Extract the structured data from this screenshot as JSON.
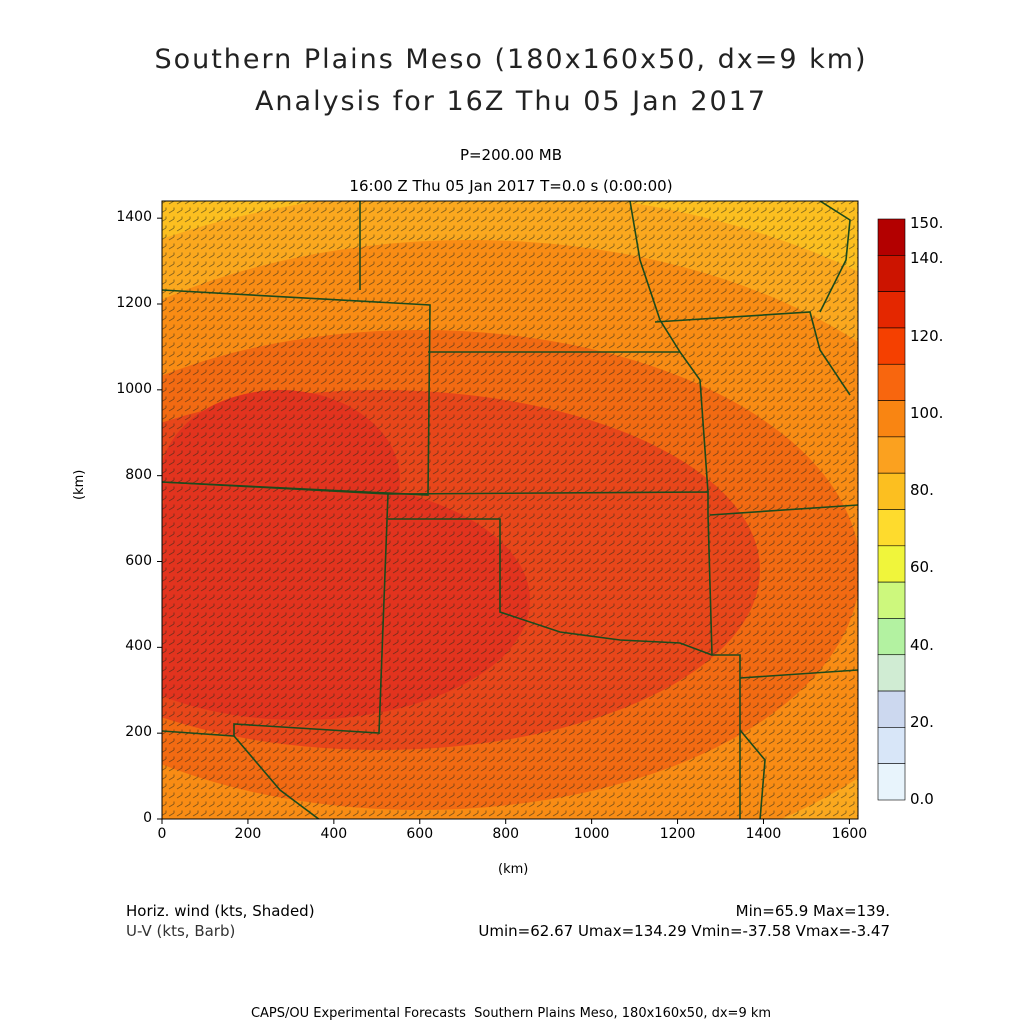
{
  "title": {
    "line1": "Southern Plains Meso (180x160x50, dx=9 km)",
    "line2": "Analysis for 16Z Thu 05 Jan 2017"
  },
  "subtitle": {
    "level": "P=200.00 MB",
    "time": "16:00 Z Thu 05 Jan 2017    T=0.0 s (0:00:00)"
  },
  "axes": {
    "xlabel": "(km)",
    "ylabel": "(km)",
    "x_ticks": [
      "0",
      "200",
      "400",
      "600",
      "800",
      "1000",
      "1200",
      "1400",
      "1600"
    ],
    "y_ticks": [
      "0",
      "200",
      "400",
      "600",
      "800",
      "1000",
      "1200",
      "1400"
    ],
    "x_range_km": [
      0,
      1620
    ],
    "y_range_km": [
      0,
      1440
    ]
  },
  "colorbar": {
    "labels": [
      "150.",
      "140.",
      "120.",
      "100.",
      "80.",
      "60.",
      "40.",
      "20.",
      "0.0"
    ],
    "colors": [
      "#b30000",
      "#cc1400",
      "#e42700",
      "#f54000",
      "#f8660e",
      "#f98512",
      "#fba11f",
      "#fcbf20",
      "#fedb2d",
      "#f0f53b",
      "#cdf87d",
      "#b3f2a1",
      "#d0ecd3",
      "#ccd8ef",
      "#d8e6f8",
      "#e8f4fc"
    ]
  },
  "field_colors": {
    "core": "#e2331e",
    "inner": "#e8461a",
    "mid": "#f26a12",
    "outer": "#f98c14",
    "edge": "#fba81e",
    "north": "#fcbf20",
    "barb": "#2a2a1a",
    "border": "#1c4a1c"
  },
  "footer": {
    "var1": "Horiz. wind (kts, Shaded)",
    "var2": "U-V (kts, Barb)",
    "minmax": "Min=65.9 Max=139.",
    "uvrange": "Umin=62.67 Umax=134.29 Vmin=-37.58 Vmax=-3.47",
    "credit": "CAPS/OU Experimental Forecasts  Southern Plains Meso, 180x160x50, dx=9 km"
  }
}
